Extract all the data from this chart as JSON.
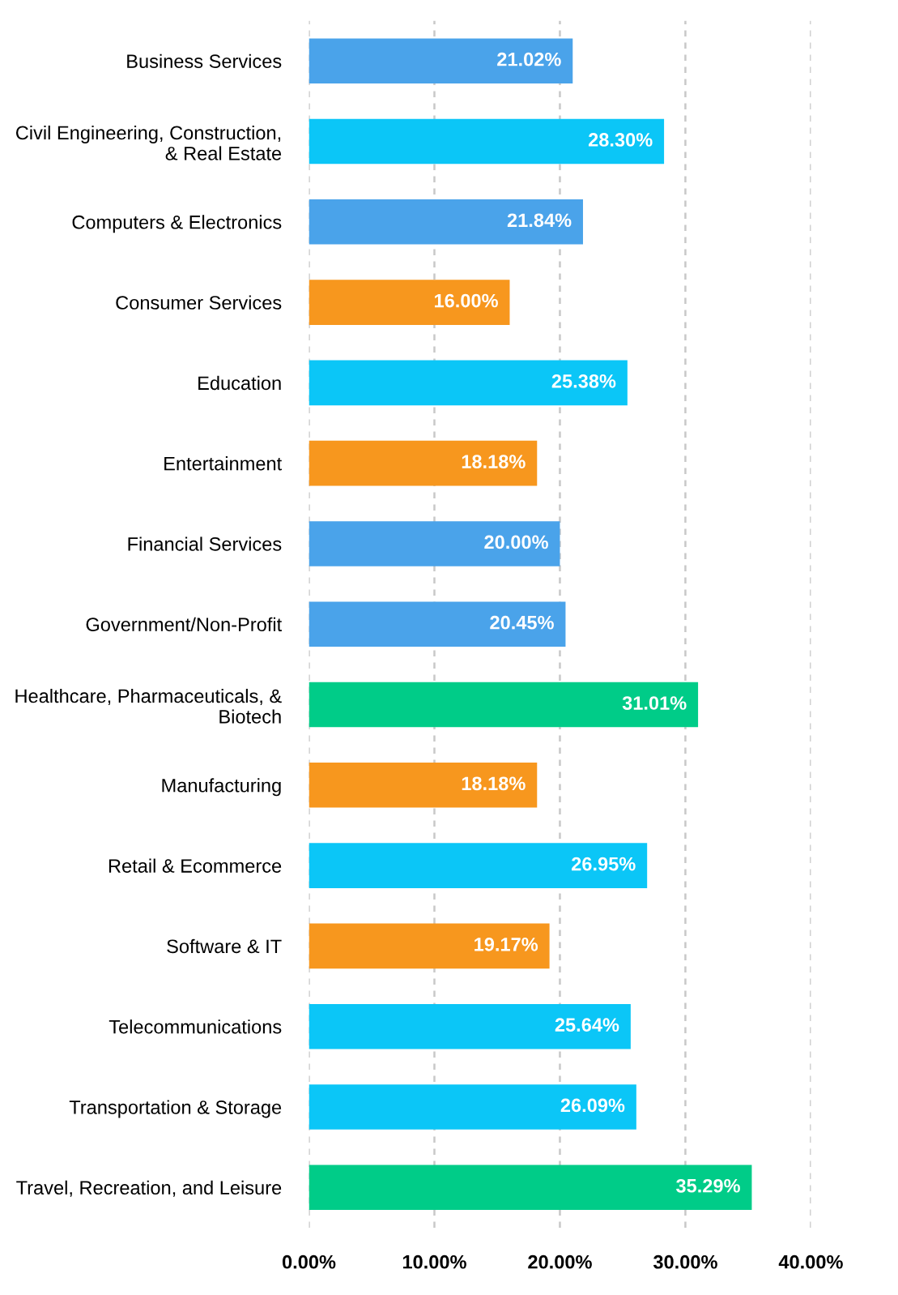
{
  "chart_data": {
    "type": "bar",
    "orientation": "horizontal",
    "categories": [
      "Business Services",
      "Civil Engineering, Construction,\n& Real Estate",
      "Computers & Electronics",
      "Consumer Services",
      "Education",
      "Entertainment",
      "Financial Services",
      "Government/Non-Profit",
      "Healthcare, Pharmaceuticals, &\nBiotech",
      "Manufacturing",
      "Retail & Ecommerce",
      "Software & IT",
      "Telecommunications",
      "Transportation & Storage",
      "Travel, Recreation, and Leisure"
    ],
    "values": [
      21.02,
      28.3,
      21.84,
      16.0,
      25.38,
      18.18,
      20.0,
      20.45,
      31.01,
      18.18,
      26.95,
      19.17,
      25.64,
      26.09,
      35.29
    ],
    "value_labels": [
      "21.02%",
      "28.30%",
      "21.84%",
      "16.00%",
      "25.38%",
      "18.18%",
      "20.00%",
      "20.45%",
      "31.01%",
      "18.18%",
      "26.95%",
      "19.17%",
      "25.64%",
      "26.09%",
      "35.29%"
    ],
    "colors": [
      "#4aa3ea",
      "#0bc6f7",
      "#4aa3ea",
      "#f7971e",
      "#0bc6f7",
      "#f7971e",
      "#4aa3ea",
      "#4aa3ea",
      "#00cc88",
      "#f7971e",
      "#0bc6f7",
      "#f7971e",
      "#0bc6f7",
      "#0bc6f7",
      "#00cc88"
    ],
    "xlim": [
      0,
      40
    ],
    "xticks": [
      {
        "value": 0,
        "label": "0.00%"
      },
      {
        "value": 10,
        "label": "10.00%"
      },
      {
        "value": 20,
        "label": "20.00%"
      },
      {
        "value": 30,
        "label": "30.00%"
      },
      {
        "value": 40,
        "label": "40.00%"
      }
    ],
    "grid": "x"
  }
}
